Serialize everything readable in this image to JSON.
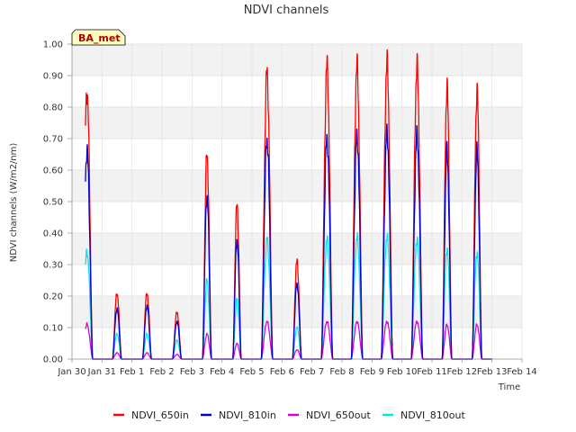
{
  "chart_data": {
    "type": "line",
    "title": "NDVI channels",
    "xlabel": "Time",
    "ylabel": "NDVI channels (W/m2/nm)",
    "ylim": [
      0,
      1.0
    ],
    "xlim": [
      0,
      15
    ],
    "y_ticks": [
      "0.00",
      "0.10",
      "0.20",
      "0.30",
      "0.40",
      "0.50",
      "0.60",
      "0.70",
      "0.80",
      "0.90",
      "1.00"
    ],
    "x_ticks": [
      "Jan 30",
      "Jan 31",
      "Feb 1",
      "Feb 2",
      "Feb 3",
      "Feb 4",
      "Feb 5",
      "Feb 6",
      "Feb 7",
      "Feb 8",
      "Feb 9",
      "Feb 10",
      "Feb 11",
      "Feb 12",
      "Feb 13",
      "Feb 14"
    ],
    "grid": true,
    "legend_position": "bottom",
    "badge": "BA_met",
    "day_peaks": {
      "days": [
        0.5,
        1.5,
        2.5,
        3.5,
        4.5,
        5.5,
        6.5,
        7.5,
        8.5,
        9.5,
        10.5,
        11.5,
        12.5,
        13.5
      ],
      "width_days": [
        0.38,
        0.3,
        0.3,
        0.3,
        0.3,
        0.28,
        0.38,
        0.3,
        0.38,
        0.38,
        0.38,
        0.38,
        0.32,
        0.32
      ]
    },
    "series": [
      {
        "name": "NDVI_650in",
        "color": "#ff0000",
        "peaks": [
          0.85,
          0.21,
          0.21,
          0.15,
          0.65,
          0.49,
          0.91,
          0.31,
          0.93,
          0.93,
          0.94,
          0.93,
          0.86,
          0.85
        ]
      },
      {
        "name": "NDVI_810in",
        "color": "#0000cc",
        "peaks": [
          0.66,
          0.16,
          0.17,
          0.12,
          0.52,
          0.38,
          0.7,
          0.24,
          0.7,
          0.71,
          0.72,
          0.71,
          0.66,
          0.66
        ]
      },
      {
        "name": "NDVI_650out",
        "color": "#dd00dd",
        "peaks": [
          0.11,
          0.02,
          0.02,
          0.015,
          0.08,
          0.05,
          0.12,
          0.03,
          0.12,
          0.12,
          0.12,
          0.12,
          0.11,
          0.11
        ]
      },
      {
        "name": "NDVI_810out",
        "color": "#00e5ee",
        "peaks": [
          0.34,
          0.08,
          0.08,
          0.06,
          0.25,
          0.19,
          0.38,
          0.1,
          0.38,
          0.39,
          0.39,
          0.38,
          0.35,
          0.34
        ]
      }
    ]
  }
}
